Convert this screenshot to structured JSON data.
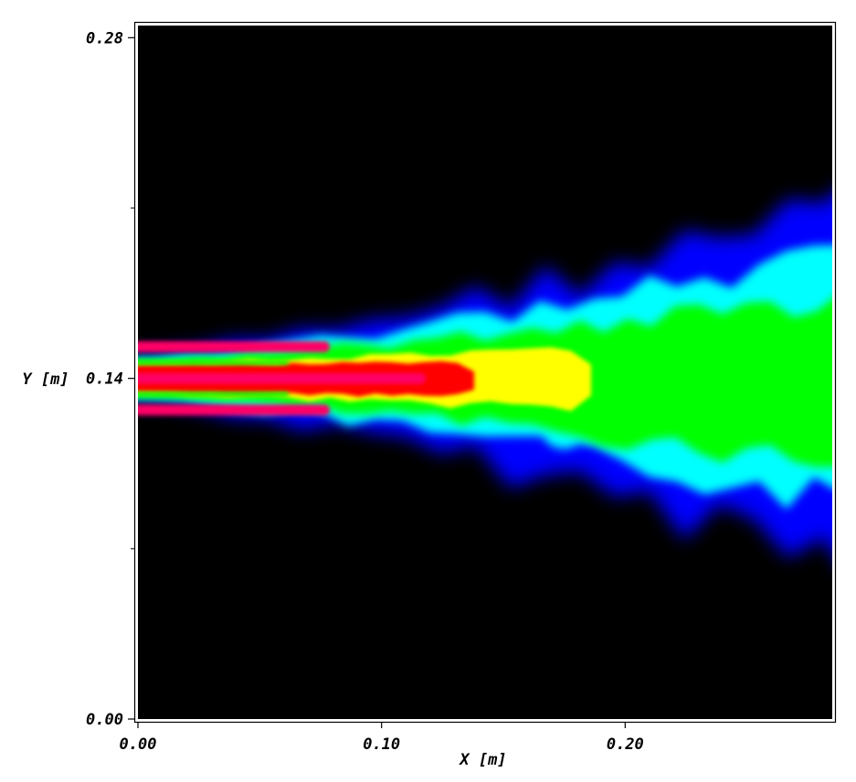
{
  "chart_data": {
    "type": "heatmap",
    "title": "",
    "xlabel": "X [m]",
    "ylabel": "Y [m]",
    "xlim": [
      0.0,
      0.285
    ],
    "ylim": [
      0.0,
      0.285
    ],
    "x_ticks": [
      {
        "value": 0.0,
        "label": "0.00"
      },
      {
        "value": 0.1,
        "label": "0.10"
      },
      {
        "value": 0.2,
        "label": "0.20"
      }
    ],
    "y_ticks": [
      {
        "value": 0.0,
        "label": "0.00"
      },
      {
        "value": 0.14,
        "label": "0.14"
      },
      {
        "value": 0.28,
        "label": "0.28"
      }
    ],
    "y_minor_ticks": [
      0.07,
      0.21
    ],
    "grid": false,
    "legend": "none",
    "colormap": [
      "#000000",
      "#0000ff",
      "#00ffff",
      "#00ff00",
      "#ffff00",
      "#ff0000",
      "#ff0066"
    ],
    "background_color": "#000000",
    "jet": {
      "centerline_y": 0.14,
      "inlet_half_width": 0.0165,
      "inlet_streaks_y": [
        0.153,
        0.14,
        0.127
      ]
    }
  }
}
